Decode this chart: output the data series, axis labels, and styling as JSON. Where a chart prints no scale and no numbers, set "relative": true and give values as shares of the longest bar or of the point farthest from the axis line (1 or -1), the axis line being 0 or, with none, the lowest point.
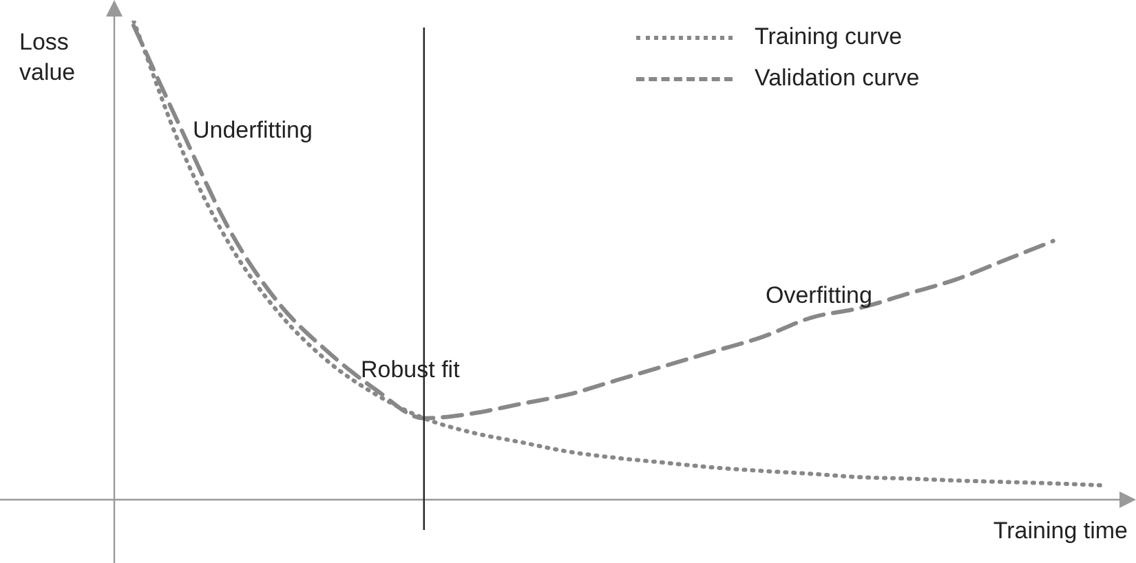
{
  "chart_data": {
    "type": "line",
    "relative": true,
    "xlabel": "Training time",
    "ylabel": "Loss value",
    "categories": [
      null,
      null,
      null,
      null,
      null,
      null,
      null,
      null,
      null,
      null,
      null,
      null,
      null,
      null,
      null,
      null,
      null,
      null,
      null,
      null,
      null
    ],
    "series": [
      {
        "name": "Training curve",
        "color": "#888888",
        "line_style": "dotted",
        "values": [
          1.0,
          0.73,
          0.53,
          0.39,
          0.29,
          0.22,
          0.17,
          0.14,
          0.12,
          0.1,
          0.087,
          0.077,
          0.067,
          0.06,
          0.054,
          0.047,
          0.044,
          0.04,
          0.037,
          0.034,
          0.03
        ]
      },
      {
        "name": "Validation curve",
        "color": "#888888",
        "line_style": "dashed",
        "values": [
          0.99,
          0.77,
          0.56,
          0.41,
          0.31,
          0.23,
          0.17,
          0.18,
          0.2,
          0.22,
          0.25,
          0.28,
          0.31,
          0.34,
          0.38,
          0.4,
          0.43,
          0.46,
          0.5,
          0.54,
          null
        ]
      }
    ],
    "annotations": [
      "Underfitting",
      "Robust fit",
      "Overfitting"
    ],
    "legend": "top right",
    "marker": "none"
  }
}
